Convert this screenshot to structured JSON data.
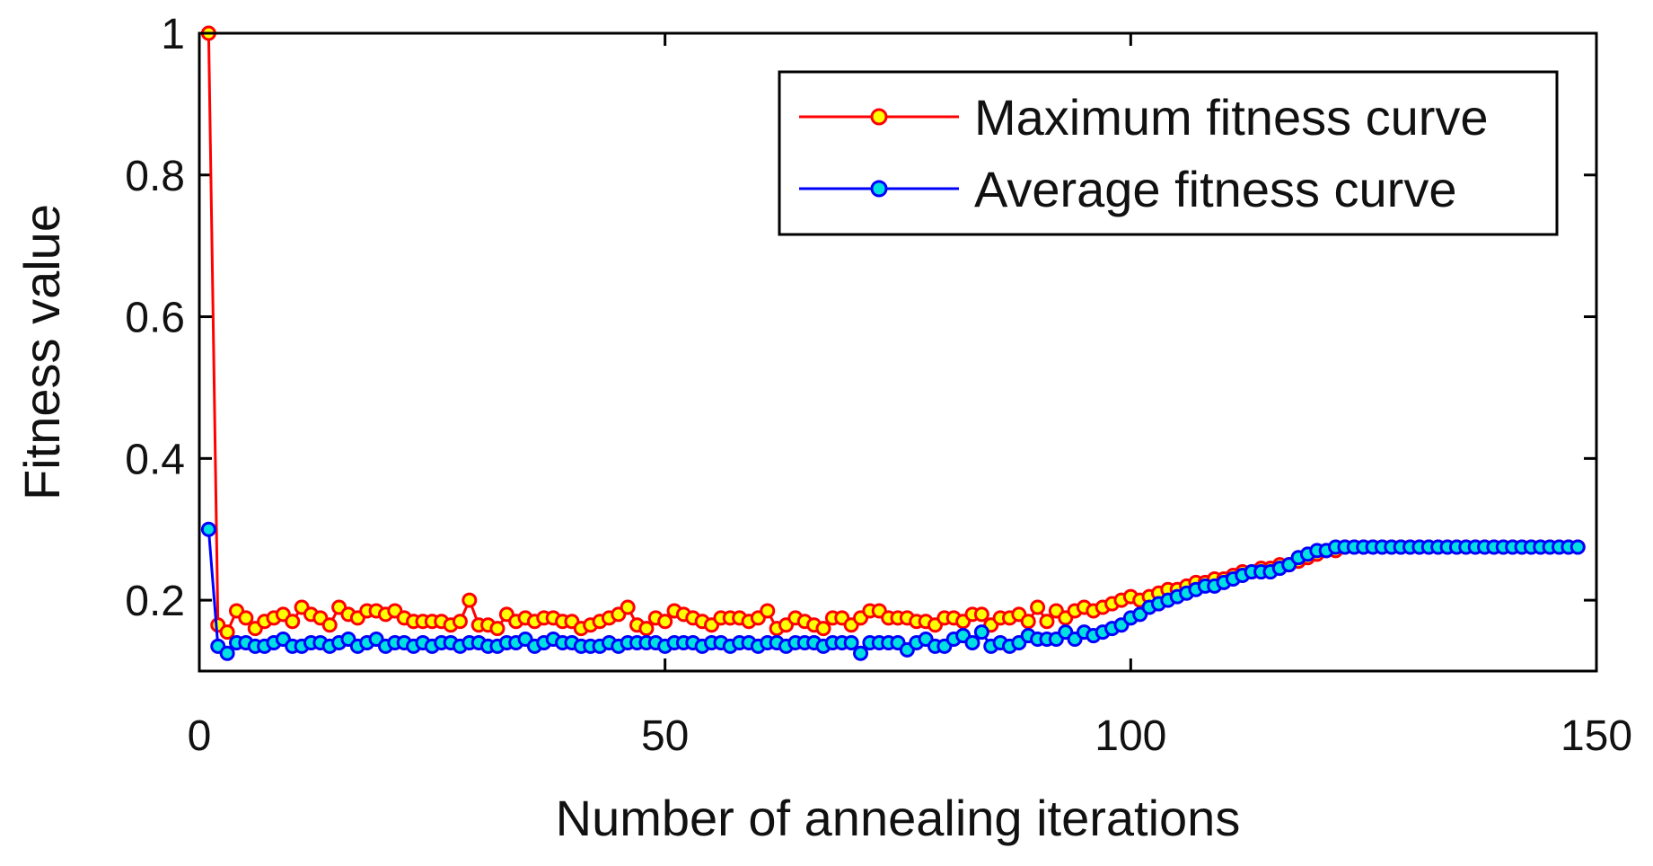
{
  "chart_data": {
    "type": "line",
    "title": "",
    "xlabel": "Number of annealing iterations",
    "ylabel": "Fitness value",
    "xlim": [
      0,
      150
    ],
    "ylim": [
      0.1,
      1.0
    ],
    "xticks": [
      0,
      50,
      100,
      150
    ],
    "xtick_labels": [
      "0",
      "50",
      "100",
      "150"
    ],
    "yticks": [
      0.2,
      0.4,
      0.6,
      0.8,
      1.0
    ],
    "ytick_labels": [
      "0.2",
      "0.4",
      "0.6",
      "0.8",
      "1"
    ],
    "grid": false,
    "legend_position": "top-right",
    "x": [
      1,
      2,
      3,
      4,
      5,
      6,
      7,
      8,
      9,
      10,
      11,
      12,
      13,
      14,
      15,
      16,
      17,
      18,
      19,
      20,
      21,
      22,
      23,
      24,
      25,
      26,
      27,
      28,
      29,
      30,
      31,
      32,
      33,
      34,
      35,
      36,
      37,
      38,
      39,
      40,
      41,
      42,
      43,
      44,
      45,
      46,
      47,
      48,
      49,
      50,
      51,
      52,
      53,
      54,
      55,
      56,
      57,
      58,
      59,
      60,
      61,
      62,
      63,
      64,
      65,
      66,
      67,
      68,
      69,
      70,
      71,
      72,
      73,
      74,
      75,
      76,
      77,
      78,
      79,
      80,
      81,
      82,
      83,
      84,
      85,
      86,
      87,
      88,
      89,
      90,
      91,
      92,
      93,
      94,
      95,
      96,
      97,
      98,
      99,
      100,
      101,
      102,
      103,
      104,
      105,
      106,
      107,
      108,
      109,
      110,
      111,
      112,
      113,
      114,
      115,
      116,
      117,
      118,
      119,
      120,
      121,
      122,
      123,
      124,
      125,
      126,
      127,
      128,
      129,
      130,
      131,
      132,
      133,
      134,
      135,
      136,
      137,
      138,
      139,
      140,
      141,
      142,
      143,
      144,
      145,
      146,
      147,
      148
    ],
    "series": [
      {
        "name": "Maximum fitness curve",
        "line_color": "#ff0000",
        "marker_face": "#ffff00",
        "marker_edge": "#ff0000",
        "values": [
          1.0,
          0.165,
          0.155,
          0.185,
          0.175,
          0.16,
          0.17,
          0.175,
          0.18,
          0.17,
          0.19,
          0.18,
          0.175,
          0.165,
          0.19,
          0.18,
          0.175,
          0.185,
          0.185,
          0.18,
          0.185,
          0.175,
          0.17,
          0.17,
          0.17,
          0.17,
          0.165,
          0.17,
          0.2,
          0.165,
          0.165,
          0.16,
          0.18,
          0.17,
          0.175,
          0.17,
          0.175,
          0.175,
          0.17,
          0.17,
          0.16,
          0.165,
          0.17,
          0.175,
          0.18,
          0.19,
          0.165,
          0.16,
          0.175,
          0.17,
          0.185,
          0.18,
          0.175,
          0.17,
          0.165,
          0.175,
          0.175,
          0.175,
          0.17,
          0.175,
          0.185,
          0.16,
          0.165,
          0.175,
          0.17,
          0.165,
          0.16,
          0.175,
          0.175,
          0.165,
          0.175,
          0.185,
          0.185,
          0.175,
          0.175,
          0.175,
          0.17,
          0.17,
          0.165,
          0.175,
          0.175,
          0.17,
          0.18,
          0.18,
          0.165,
          0.175,
          0.175,
          0.18,
          0.17,
          0.19,
          0.17,
          0.185,
          0.175,
          0.185,
          0.19,
          0.185,
          0.19,
          0.195,
          0.2,
          0.205,
          0.2,
          0.205,
          0.21,
          0.215,
          0.215,
          0.22,
          0.225,
          0.225,
          0.23,
          0.23,
          0.235,
          0.24,
          0.24,
          0.245,
          0.245,
          0.25,
          0.25,
          0.255,
          0.26,
          0.265,
          0.27,
          0.27,
          0.275,
          0.275,
          0.275,
          0.275,
          0.275,
          0.275,
          0.275,
          0.275,
          0.275,
          0.275,
          0.275,
          0.275,
          0.275,
          0.275,
          0.275,
          0.275,
          0.275,
          0.275,
          0.275,
          0.275,
          0.275,
          0.275,
          0.275,
          0.275,
          0.275,
          0.275
        ]
      },
      {
        "name": "Average fitness curve",
        "line_color": "#0000ff",
        "marker_face": "#00e0e0",
        "marker_edge": "#0000ff",
        "values": [
          0.3,
          0.135,
          0.125,
          0.14,
          0.14,
          0.135,
          0.135,
          0.14,
          0.145,
          0.135,
          0.135,
          0.14,
          0.14,
          0.135,
          0.14,
          0.145,
          0.135,
          0.14,
          0.145,
          0.135,
          0.14,
          0.14,
          0.135,
          0.14,
          0.135,
          0.14,
          0.14,
          0.135,
          0.14,
          0.14,
          0.135,
          0.135,
          0.14,
          0.14,
          0.145,
          0.135,
          0.14,
          0.145,
          0.14,
          0.14,
          0.135,
          0.135,
          0.135,
          0.14,
          0.135,
          0.14,
          0.14,
          0.14,
          0.14,
          0.135,
          0.14,
          0.14,
          0.14,
          0.135,
          0.14,
          0.14,
          0.135,
          0.14,
          0.14,
          0.135,
          0.14,
          0.14,
          0.135,
          0.14,
          0.14,
          0.14,
          0.135,
          0.14,
          0.14,
          0.14,
          0.125,
          0.14,
          0.14,
          0.14,
          0.14,
          0.13,
          0.14,
          0.145,
          0.135,
          0.135,
          0.145,
          0.15,
          0.14,
          0.155,
          0.135,
          0.14,
          0.135,
          0.14,
          0.15,
          0.145,
          0.145,
          0.145,
          0.155,
          0.145,
          0.155,
          0.15,
          0.155,
          0.16,
          0.165,
          0.175,
          0.18,
          0.19,
          0.195,
          0.2,
          0.205,
          0.21,
          0.215,
          0.22,
          0.22,
          0.225,
          0.23,
          0.235,
          0.24,
          0.24,
          0.24,
          0.245,
          0.25,
          0.26,
          0.265,
          0.27,
          0.27,
          0.275,
          0.275,
          0.275,
          0.275,
          0.275,
          0.275,
          0.275,
          0.275,
          0.275,
          0.275,
          0.275,
          0.275,
          0.275,
          0.275,
          0.275,
          0.275,
          0.275,
          0.275,
          0.275,
          0.275,
          0.275,
          0.275,
          0.275,
          0.275,
          0.275,
          0.275,
          0.275
        ]
      }
    ]
  }
}
